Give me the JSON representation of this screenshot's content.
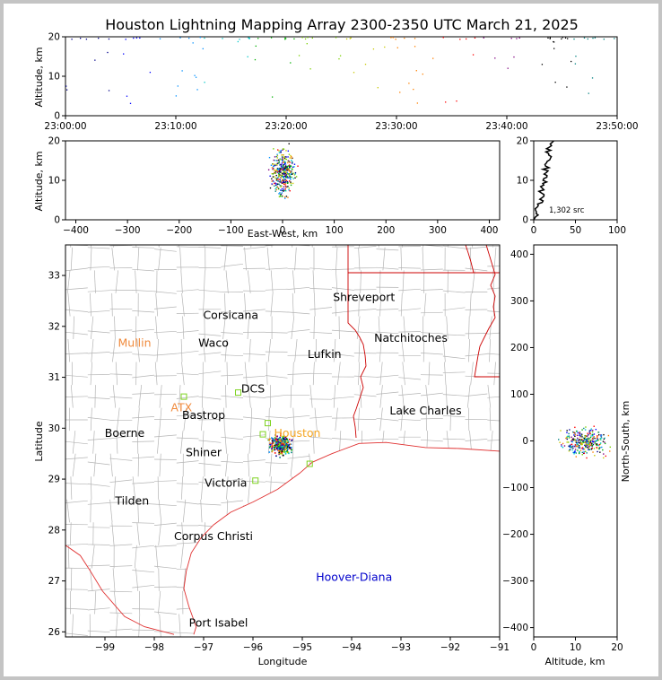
{
  "chart_data": [
    {
      "type": "scatter",
      "title": "Houston Lightning Mapping Array 2300-2350 UTC March 21, 2025",
      "ylabel": "Altitude, km",
      "xlabel": "",
      "ylim": [
        0,
        20
      ],
      "x_ticks": [
        "23:00:00",
        "23:10:00",
        "23:20:00",
        "23:30:00",
        "23:40:00",
        "23:50:00"
      ],
      "y_ticks": [
        "0",
        "10",
        "20"
      ]
    },
    {
      "type": "scatter",
      "xlabel": "East-West, km",
      "ylabel": "Altitude, km",
      "xlim": [
        -420,
        420
      ],
      "ylim": [
        0,
        20
      ],
      "x_ticks": [
        "−400",
        "−300",
        "−200",
        "−100",
        "0",
        "100",
        "200",
        "300",
        "400"
      ],
      "y_ticks": [
        "0",
        "10",
        "20"
      ]
    },
    {
      "type": "line",
      "xlim": [
        0,
        100
      ],
      "ylim": [
        0,
        20
      ],
      "x_ticks": [
        "0",
        "50",
        "100"
      ],
      "y_ticks": [
        "0",
        "10",
        "20"
      ],
      "annotation": "1,302 src"
    },
    {
      "type": "scatter",
      "xlabel": "Longitude",
      "ylabel": "Latitude",
      "xlim": [
        -99.8,
        -91
      ],
      "ylim": [
        25.9,
        33.6
      ],
      "x_ticks": [
        "−99",
        "−98",
        "−97",
        "−96",
        "−95",
        "−94",
        "−93",
        "−92",
        "−91"
      ],
      "y_ticks": [
        "26",
        "27",
        "28",
        "29",
        "30",
        "31",
        "32",
        "33"
      ],
      "cities": [
        {
          "name": "Shreveport",
          "lon": -93.75,
          "lat": 32.5,
          "color": "#000000"
        },
        {
          "name": "Corsicana",
          "lon": -96.45,
          "lat": 32.15,
          "color": "#000000"
        },
        {
          "name": "Natchitoches",
          "lon": -92.8,
          "lat": 31.7,
          "color": "#000000"
        },
        {
          "name": "Mullin",
          "lon": -98.4,
          "lat": 31.6,
          "color": "#f08a3c"
        },
        {
          "name": "Waco",
          "lon": -96.8,
          "lat": 31.6,
          "color": "#000000"
        },
        {
          "name": "Lufkin",
          "lon": -94.55,
          "lat": 31.38,
          "color": "#000000"
        },
        {
          "name": "DCS",
          "lon": -96.0,
          "lat": 30.7,
          "color": "#000000"
        },
        {
          "name": "ATX",
          "lon": -97.45,
          "lat": 30.33,
          "color": "#f08a3c"
        },
        {
          "name": "Lake Charles",
          "lon": -92.5,
          "lat": 30.27,
          "color": "#000000"
        },
        {
          "name": "Bastrop",
          "lon": -97.0,
          "lat": 30.18,
          "color": "#000000"
        },
        {
          "name": "Boerne",
          "lon": -98.6,
          "lat": 29.83,
          "color": "#000000"
        },
        {
          "name": "Houston",
          "lon": -95.1,
          "lat": 29.83,
          "color": "#f5a623"
        },
        {
          "name": "Shiner",
          "lon": -97.0,
          "lat": 29.45,
          "color": "#000000"
        },
        {
          "name": "Victoria",
          "lon": -96.55,
          "lat": 28.85,
          "color": "#000000"
        },
        {
          "name": "Tilden",
          "lon": -98.45,
          "lat": 28.5,
          "color": "#000000"
        },
        {
          "name": "Corpus Christi",
          "lon": -96.8,
          "lat": 27.8,
          "color": "#000000"
        },
        {
          "name": "Hoover-Diana",
          "lon": -93.95,
          "lat": 27.0,
          "color": "#0000cc"
        },
        {
          "name": "Port Isabel",
          "lon": -96.7,
          "lat": 26.1,
          "color": "#000000"
        }
      ],
      "stations": [
        {
          "lon": -97.4,
          "lat": 30.62
        },
        {
          "lon": -96.3,
          "lat": 30.7
        },
        {
          "lon": -95.7,
          "lat": 30.1
        },
        {
          "lon": -95.8,
          "lat": 29.88
        },
        {
          "lon": -94.85,
          "lat": 29.3
        },
        {
          "lon": -95.95,
          "lat": 28.97
        }
      ]
    },
    {
      "type": "scatter",
      "xlabel": "Altitude, km",
      "ylabel": "North-South, km",
      "xlim": [
        0,
        20
      ],
      "ylim": [
        -420,
        420
      ],
      "x_ticks": [
        "0",
        "10",
        "20"
      ],
      "y_ticks": [
        "−400",
        "−300",
        "−200",
        "−100",
        "0",
        "100",
        "200",
        "300",
        "400"
      ]
    }
  ],
  "colors": {
    "state_border": "#cc0000",
    "county": "#aaaaaa",
    "coast": "#dd2222",
    "station": "#7ed321"
  }
}
